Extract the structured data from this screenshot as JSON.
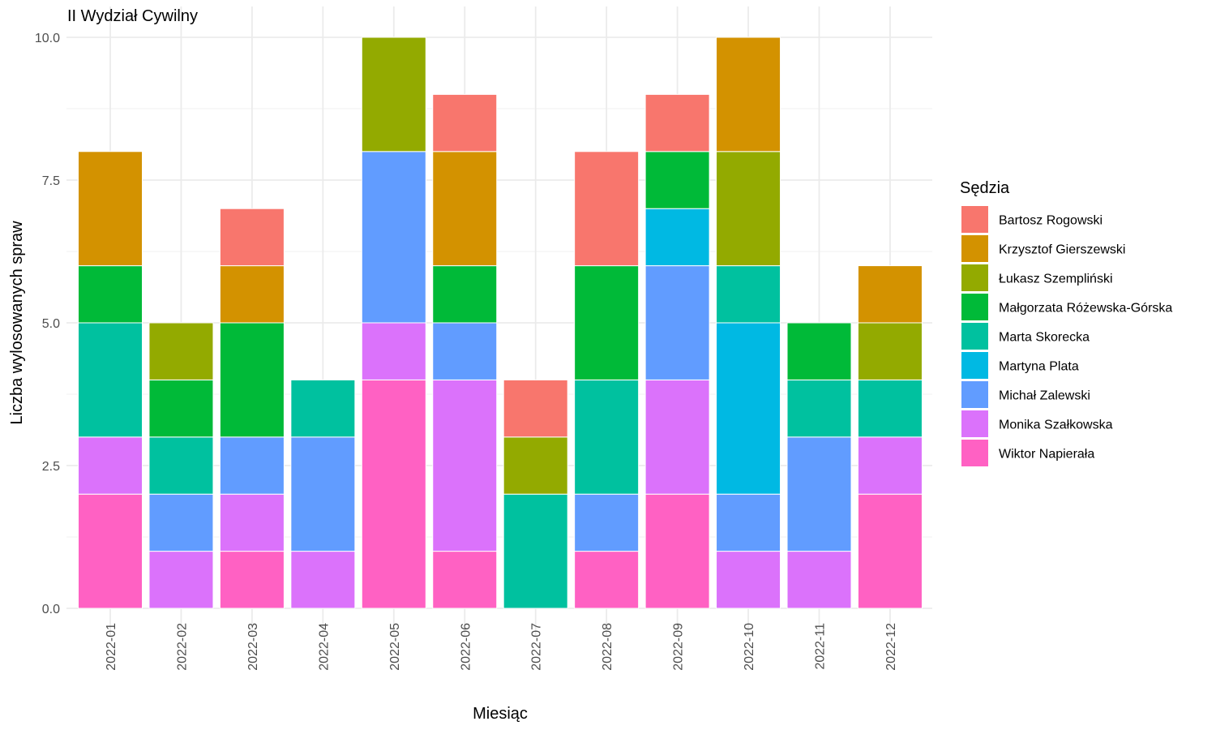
{
  "chart_data": {
    "type": "bar",
    "stacked": true,
    "title": "II Wydział Cywilny",
    "xlabel": "Miesiąc",
    "ylabel": "Liczba wylosowanych spraw",
    "ylim": [
      0,
      10
    ],
    "yticks": [
      "0.0",
      "2.5",
      "5.0",
      "7.5",
      "10.0"
    ],
    "grid": true,
    "legend_title": "Sędzia",
    "legend_position": "right",
    "categories": [
      "2022-01",
      "2022-02",
      "2022-03",
      "2022-04",
      "2022-05",
      "2022-06",
      "2022-07",
      "2022-08",
      "2022-09",
      "2022-10",
      "2022-11",
      "2022-12"
    ],
    "series": [
      {
        "name": "Bartosz Rogowski",
        "color": "#F8766D",
        "values": [
          0,
          0,
          1,
          0,
          0,
          1,
          1,
          2,
          1,
          0,
          0,
          0
        ]
      },
      {
        "name": "Krzysztof Gierszewski",
        "color": "#D39200",
        "values": [
          2,
          0,
          1,
          0,
          0,
          2,
          0,
          0,
          0,
          2,
          0,
          1
        ]
      },
      {
        "name": "Łukasz Szempliński",
        "color": "#93AA00",
        "values": [
          0,
          1,
          0,
          0,
          2,
          0,
          1,
          0,
          0,
          2,
          0,
          1
        ]
      },
      {
        "name": "Małgorzata Różewska-Górska",
        "color": "#00BA38",
        "values": [
          1,
          1,
          2,
          0,
          0,
          1,
          0,
          2,
          1,
          0,
          1,
          0
        ]
      },
      {
        "name": "Marta Skorecka",
        "color": "#00C19F",
        "values": [
          2,
          1,
          0,
          1,
          0,
          0,
          2,
          2,
          0,
          1,
          1,
          1
        ]
      },
      {
        "name": "Martyna Plata",
        "color": "#00B9E3",
        "values": [
          0,
          0,
          0,
          0,
          0,
          0,
          0,
          0,
          1,
          3,
          0,
          0
        ]
      },
      {
        "name": "Michał Zalewski",
        "color": "#619CFF",
        "values": [
          0,
          1,
          1,
          2,
          3,
          1,
          0,
          1,
          2,
          1,
          2,
          0
        ]
      },
      {
        "name": "Monika Szałkowska",
        "color": "#DB72FB",
        "values": [
          1,
          1,
          1,
          1,
          1,
          3,
          0,
          0,
          2,
          1,
          1,
          1
        ]
      },
      {
        "name": "Wiktor Napierała",
        "color": "#FF61C3",
        "values": [
          2,
          0,
          1,
          0,
          4,
          1,
          0,
          1,
          2,
          0,
          0,
          2
        ]
      }
    ]
  }
}
